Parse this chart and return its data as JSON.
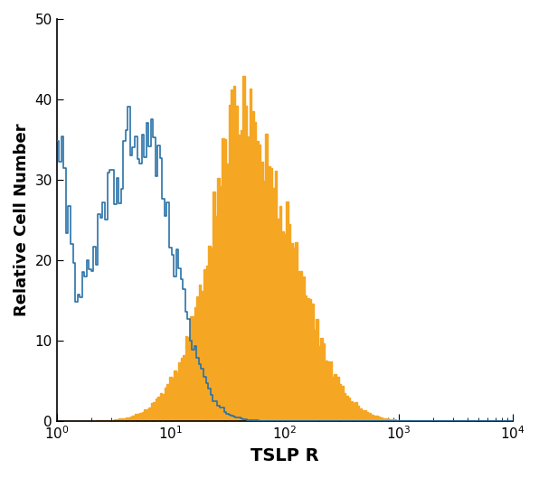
{
  "xlabel": "TSLP R",
  "ylabel": "Relative Cell Number",
  "xlim_log": [
    1,
    10000
  ],
  "ylim": [
    0,
    50
  ],
  "yticks": [
    0,
    10,
    20,
    30,
    40,
    50
  ],
  "blue_color": "#2a72a8",
  "orange_color": "#f5a623",
  "background_color": "#ffffff",
  "ylabel_fontsize": 13,
  "xlabel_fontsize": 14,
  "tick_fontsize": 11
}
